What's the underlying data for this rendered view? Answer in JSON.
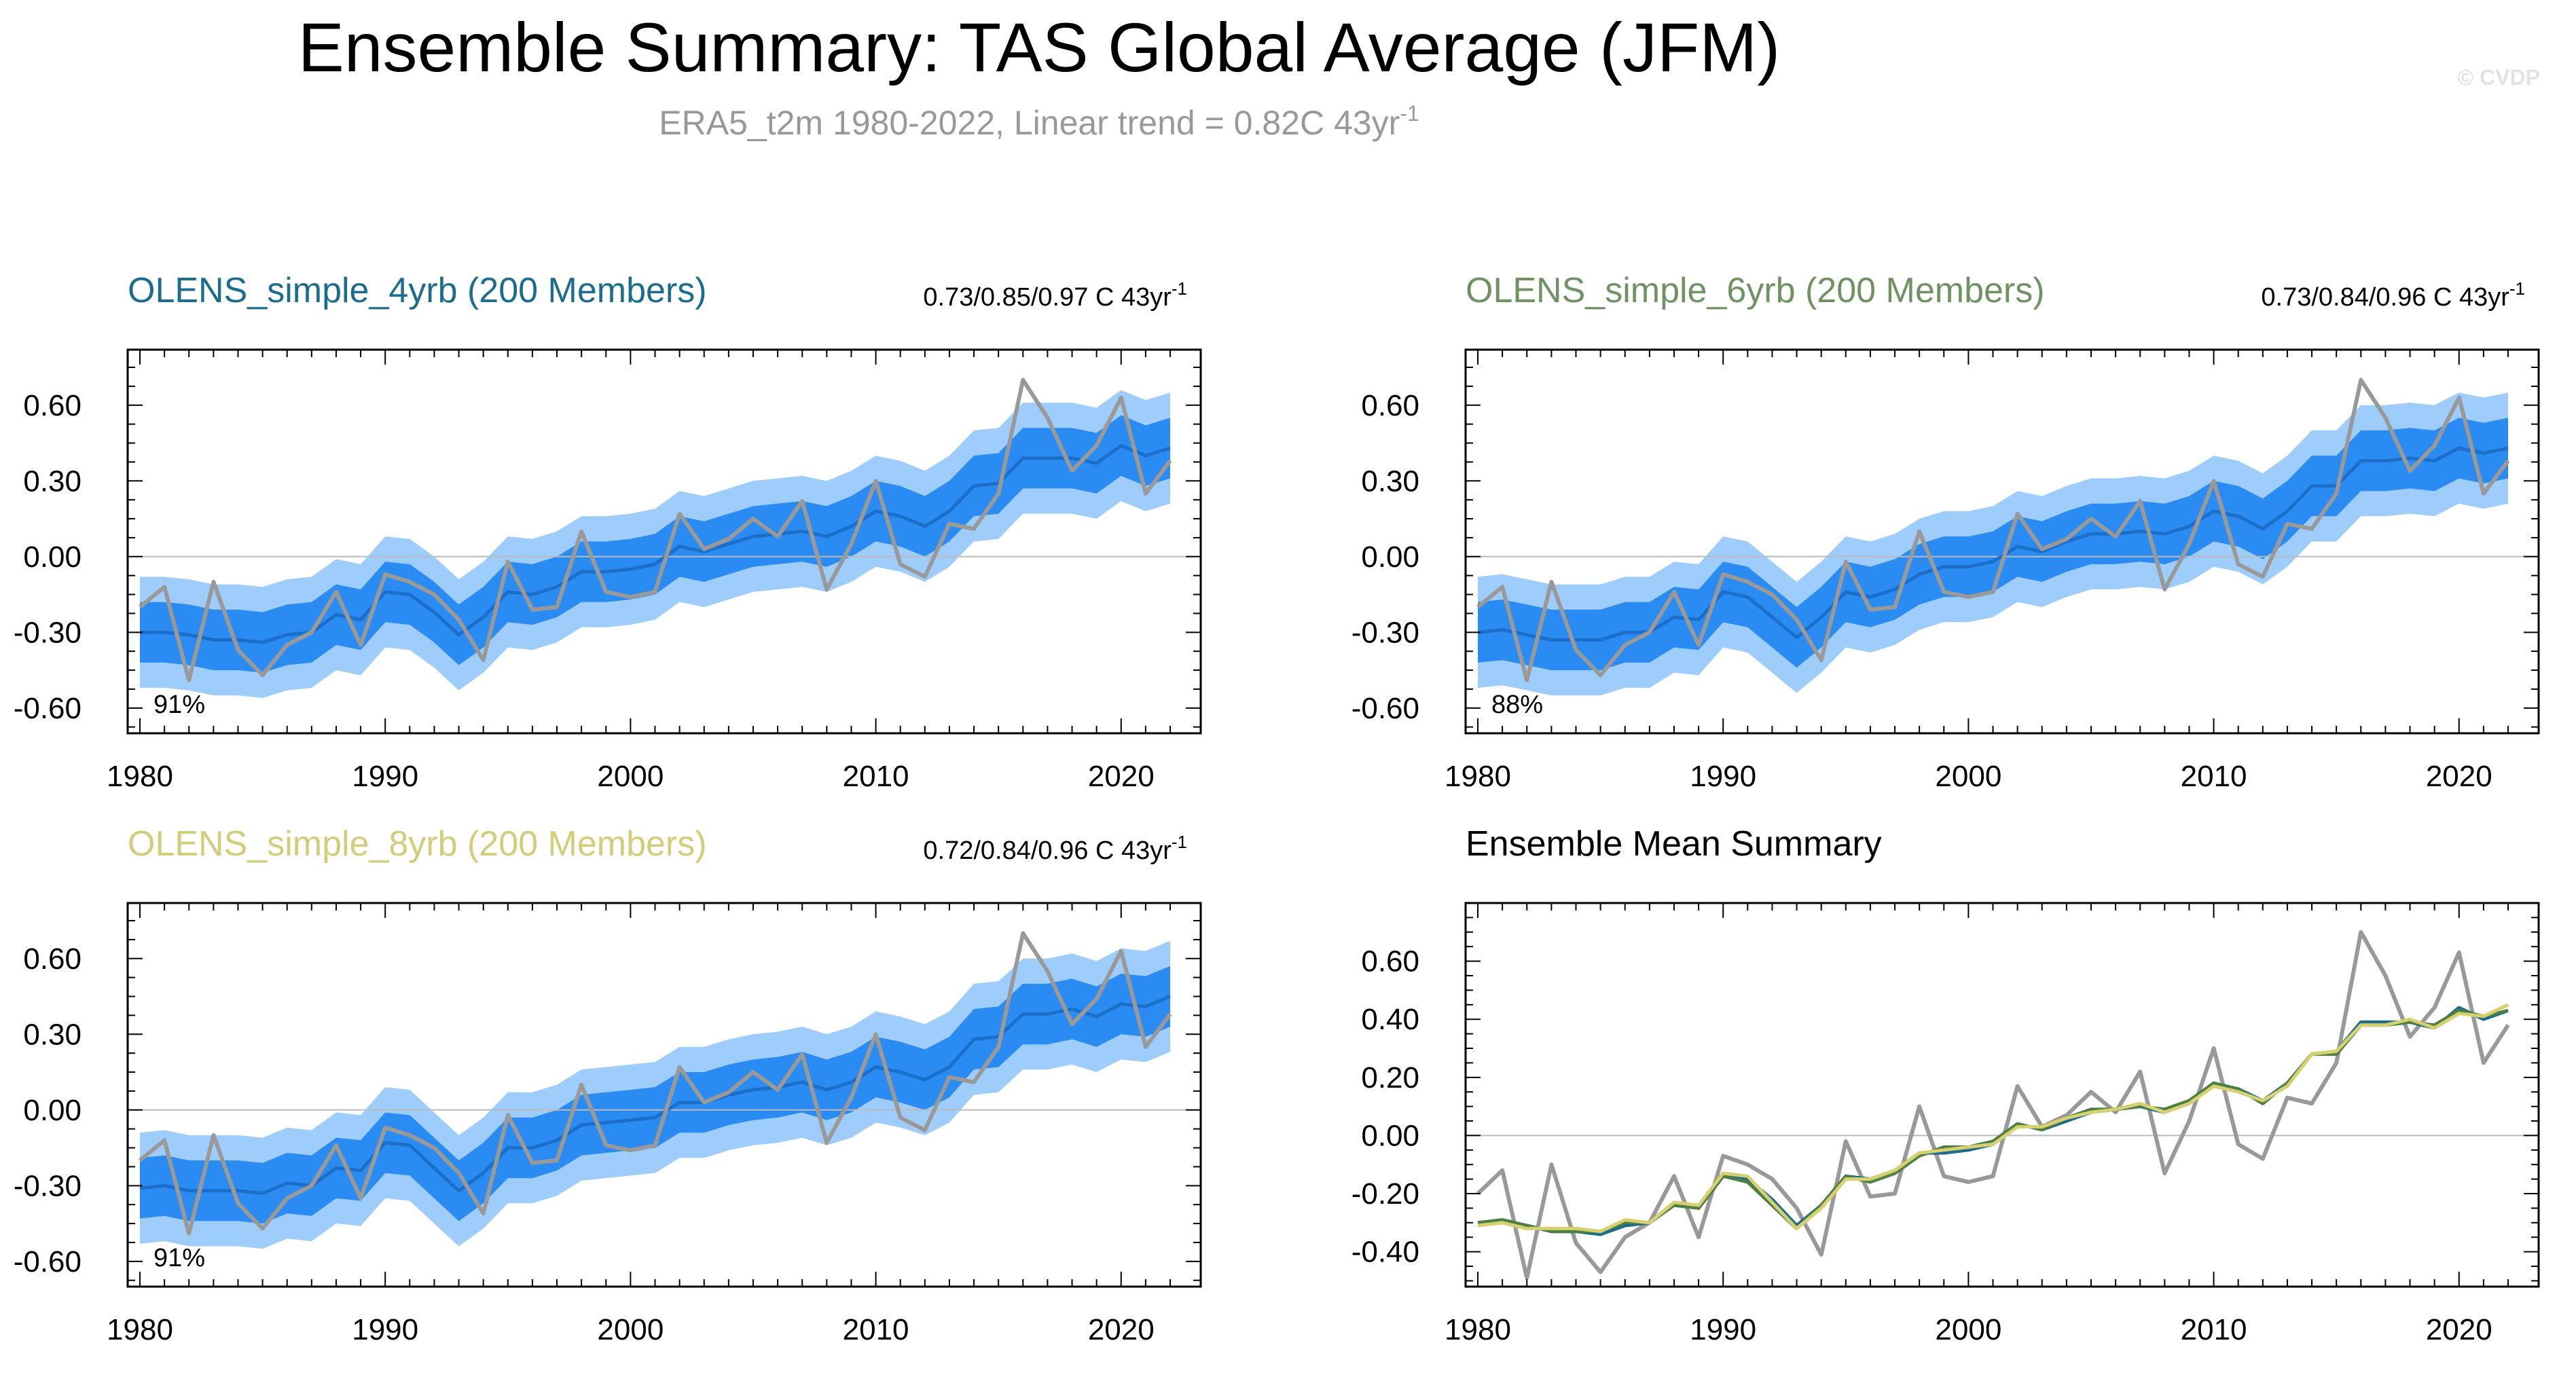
{
  "title": "Ensemble Summary: TAS Global Average (JFM)",
  "subtitle_main": "ERA5_t2m 1980-2022, Linear trend = 0.82C 43yr",
  "subtitle_sup": "-1",
  "copyright": "© CVDP",
  "colors": {
    "outer_band": "#9fcdfb",
    "inner_band": "#2a8bf2",
    "ens_mean": "#1c6fc9",
    "obs": "#999999",
    "zero_line": "#bbbbbb",
    "title_4yrb": "#1b6c8d",
    "title_6yrb": "#6f9263",
    "title_8yrb": "#d2cd78",
    "line_4yrb": "#1b6c8d",
    "line_6yrb": "#4d7f44",
    "line_8yrb": "#d6d070"
  },
  "chart_data": [
    {
      "type": "line",
      "id": "p1",
      "title": "OLENS_simple_4yrb (200 Members)",
      "trend_text": "0.73/0.85/0.97 C 43yr",
      "trend_sup": "-1",
      "percent_label": "91%",
      "xlim": [
        1980,
        2022
      ],
      "ylim": [
        -0.7,
        0.82
      ],
      "x_ticks": [
        1980,
        1990,
        2000,
        2010,
        2020
      ],
      "y_ticks": [
        0.6,
        0.3,
        0.0,
        -0.3,
        -0.6
      ],
      "y_tick_labels": [
        "0.60",
        "0.30",
        "0.00",
        "-0.30",
        "-0.60"
      ],
      "ens_mean": [
        -0.3,
        -0.3,
        -0.31,
        -0.33,
        -0.33,
        -0.34,
        -0.31,
        -0.3,
        -0.23,
        -0.25,
        -0.14,
        -0.15,
        -0.22,
        -0.31,
        -0.24,
        -0.14,
        -0.15,
        -0.12,
        -0.06,
        -0.06,
        -0.05,
        -0.03,
        0.04,
        0.02,
        0.05,
        0.08,
        0.09,
        0.1,
        0.08,
        0.12,
        0.18,
        0.16,
        0.12,
        0.18,
        0.28,
        0.29,
        0.39,
        0.39,
        0.39,
        0.37,
        0.44,
        0.4,
        0.43
      ],
      "inner_lo": [
        -0.42,
        -0.42,
        -0.43,
        -0.45,
        -0.45,
        -0.46,
        -0.43,
        -0.42,
        -0.35,
        -0.37,
        -0.26,
        -0.27,
        -0.34,
        -0.43,
        -0.36,
        -0.26,
        -0.27,
        -0.24,
        -0.18,
        -0.18,
        -0.17,
        -0.15,
        -0.08,
        -0.1,
        -0.07,
        -0.04,
        -0.03,
        -0.02,
        -0.04,
        0.0,
        0.06,
        0.04,
        0.0,
        0.06,
        0.16,
        0.17,
        0.27,
        0.27,
        0.27,
        0.25,
        0.32,
        0.28,
        0.31
      ],
      "inner_hi": [
        -0.18,
        -0.18,
        -0.19,
        -0.21,
        -0.21,
        -0.22,
        -0.19,
        -0.18,
        -0.11,
        -0.13,
        -0.02,
        -0.03,
        -0.1,
        -0.19,
        -0.12,
        -0.02,
        -0.03,
        0.0,
        0.06,
        0.06,
        0.07,
        0.09,
        0.16,
        0.14,
        0.17,
        0.2,
        0.21,
        0.22,
        0.2,
        0.24,
        0.3,
        0.28,
        0.24,
        0.3,
        0.4,
        0.41,
        0.51,
        0.51,
        0.51,
        0.49,
        0.56,
        0.52,
        0.55
      ],
      "outer_lo": [
        -0.52,
        -0.52,
        -0.53,
        -0.55,
        -0.55,
        -0.56,
        -0.53,
        -0.52,
        -0.45,
        -0.47,
        -0.36,
        -0.37,
        -0.44,
        -0.53,
        -0.46,
        -0.36,
        -0.37,
        -0.34,
        -0.28,
        -0.28,
        -0.27,
        -0.25,
        -0.18,
        -0.2,
        -0.17,
        -0.14,
        -0.13,
        -0.12,
        -0.14,
        -0.1,
        -0.04,
        -0.06,
        -0.1,
        -0.04,
        0.06,
        0.07,
        0.17,
        0.17,
        0.17,
        0.15,
        0.22,
        0.18,
        0.21
      ],
      "outer_hi": [
        -0.08,
        -0.08,
        -0.09,
        -0.11,
        -0.11,
        -0.12,
        -0.09,
        -0.08,
        -0.01,
        -0.03,
        0.08,
        0.07,
        0.0,
        -0.09,
        -0.02,
        0.08,
        0.07,
        0.1,
        0.16,
        0.16,
        0.17,
        0.19,
        0.26,
        0.24,
        0.27,
        0.3,
        0.31,
        0.32,
        0.3,
        0.34,
        0.4,
        0.38,
        0.34,
        0.4,
        0.5,
        0.51,
        0.61,
        0.61,
        0.61,
        0.59,
        0.66,
        0.62,
        0.65
      ],
      "obs": [
        -0.2,
        -0.12,
        -0.49,
        -0.1,
        -0.37,
        -0.47,
        -0.35,
        -0.3,
        -0.14,
        -0.35,
        -0.07,
        -0.1,
        -0.15,
        -0.25,
        -0.41,
        -0.02,
        -0.21,
        -0.2,
        0.1,
        -0.14,
        -0.16,
        -0.14,
        0.17,
        0.03,
        0.07,
        0.15,
        0.08,
        0.22,
        -0.13,
        0.05,
        0.3,
        -0.03,
        -0.08,
        0.13,
        0.11,
        0.25,
        0.7,
        0.55,
        0.34,
        0.44,
        0.63,
        0.25,
        0.38
      ]
    },
    {
      "type": "line",
      "id": "p2",
      "title": "OLENS_simple_6yrb (200 Members)",
      "trend_text": "0.73/0.84/0.96 C 43yr",
      "trend_sup": "-1",
      "percent_label": "88%",
      "xlim": [
        1980,
        2022
      ],
      "ylim": [
        -0.7,
        0.82
      ],
      "x_ticks": [
        1980,
        1990,
        2000,
        2010,
        2020
      ],
      "y_ticks": [
        0.6,
        0.3,
        0.0,
        -0.3,
        -0.6
      ],
      "y_tick_labels": [
        "0.60",
        "0.30",
        "0.00",
        "-0.30",
        "-0.60"
      ],
      "ens_mean": [
        -0.3,
        -0.29,
        -0.31,
        -0.33,
        -0.33,
        -0.33,
        -0.3,
        -0.3,
        -0.24,
        -0.25,
        -0.14,
        -0.16,
        -0.24,
        -0.32,
        -0.24,
        -0.14,
        -0.16,
        -0.13,
        -0.07,
        -0.04,
        -0.04,
        -0.02,
        0.04,
        0.02,
        0.06,
        0.09,
        0.09,
        0.1,
        0.09,
        0.12,
        0.18,
        0.16,
        0.11,
        0.18,
        0.28,
        0.28,
        0.38,
        0.38,
        0.39,
        0.38,
        0.43,
        0.41,
        0.43
      ],
      "inner_lo": [
        -0.42,
        -0.41,
        -0.43,
        -0.45,
        -0.45,
        -0.45,
        -0.42,
        -0.42,
        -0.36,
        -0.37,
        -0.26,
        -0.28,
        -0.36,
        -0.44,
        -0.36,
        -0.26,
        -0.28,
        -0.25,
        -0.19,
        -0.16,
        -0.16,
        -0.14,
        -0.08,
        -0.1,
        -0.06,
        -0.03,
        -0.03,
        -0.02,
        -0.03,
        0.0,
        0.06,
        0.04,
        -0.01,
        0.06,
        0.16,
        0.16,
        0.26,
        0.26,
        0.27,
        0.26,
        0.31,
        0.29,
        0.31
      ],
      "inner_hi": [
        -0.18,
        -0.17,
        -0.19,
        -0.21,
        -0.21,
        -0.21,
        -0.18,
        -0.18,
        -0.12,
        -0.13,
        -0.02,
        -0.04,
        -0.12,
        -0.2,
        -0.12,
        -0.02,
        -0.04,
        -0.01,
        0.05,
        0.08,
        0.08,
        0.1,
        0.16,
        0.14,
        0.18,
        0.21,
        0.21,
        0.22,
        0.21,
        0.24,
        0.3,
        0.28,
        0.23,
        0.3,
        0.4,
        0.4,
        0.5,
        0.5,
        0.51,
        0.5,
        0.55,
        0.53,
        0.55
      ],
      "outer_lo": [
        -0.52,
        -0.51,
        -0.53,
        -0.55,
        -0.55,
        -0.55,
        -0.52,
        -0.52,
        -0.46,
        -0.47,
        -0.36,
        -0.38,
        -0.46,
        -0.54,
        -0.46,
        -0.36,
        -0.38,
        -0.35,
        -0.29,
        -0.26,
        -0.26,
        -0.24,
        -0.18,
        -0.2,
        -0.16,
        -0.13,
        -0.13,
        -0.12,
        -0.13,
        -0.1,
        -0.04,
        -0.06,
        -0.11,
        -0.04,
        0.06,
        0.06,
        0.16,
        0.16,
        0.17,
        0.16,
        0.21,
        0.19,
        0.21
      ],
      "outer_hi": [
        -0.08,
        -0.07,
        -0.09,
        -0.11,
        -0.11,
        -0.11,
        -0.08,
        -0.08,
        -0.02,
        -0.03,
        0.08,
        0.06,
        -0.02,
        -0.1,
        -0.02,
        0.08,
        0.06,
        0.09,
        0.15,
        0.18,
        0.18,
        0.2,
        0.26,
        0.24,
        0.28,
        0.31,
        0.31,
        0.32,
        0.31,
        0.34,
        0.4,
        0.38,
        0.33,
        0.4,
        0.5,
        0.5,
        0.6,
        0.6,
        0.61,
        0.6,
        0.65,
        0.63,
        0.65
      ],
      "obs": [
        -0.2,
        -0.12,
        -0.49,
        -0.1,
        -0.37,
        -0.47,
        -0.35,
        -0.3,
        -0.14,
        -0.35,
        -0.07,
        -0.1,
        -0.15,
        -0.25,
        -0.41,
        -0.02,
        -0.21,
        -0.2,
        0.1,
        -0.14,
        -0.16,
        -0.14,
        0.17,
        0.03,
        0.07,
        0.15,
        0.08,
        0.22,
        -0.13,
        0.05,
        0.3,
        -0.03,
        -0.08,
        0.13,
        0.11,
        0.25,
        0.7,
        0.55,
        0.34,
        0.44,
        0.63,
        0.25,
        0.38
      ]
    },
    {
      "type": "line",
      "id": "p3",
      "title": "OLENS_simple_8yrb (200 Members)",
      "trend_text": "0.72/0.84/0.96 C 43yr",
      "trend_sup": "-1",
      "percent_label": "91%",
      "xlim": [
        1980,
        2022
      ],
      "ylim": [
        -0.7,
        0.82
      ],
      "x_ticks": [
        1980,
        1990,
        2000,
        2010,
        2020
      ],
      "y_ticks": [
        0.6,
        0.3,
        0.0,
        -0.3,
        -0.6
      ],
      "y_tick_labels": [
        "0.60",
        "0.30",
        "0.00",
        "-0.30",
        "-0.60"
      ],
      "ens_mean": [
        -0.31,
        -0.3,
        -0.32,
        -0.32,
        -0.32,
        -0.33,
        -0.29,
        -0.3,
        -0.23,
        -0.24,
        -0.13,
        -0.14,
        -0.23,
        -0.32,
        -0.25,
        -0.15,
        -0.15,
        -0.12,
        -0.06,
        -0.05,
        -0.04,
        -0.03,
        0.03,
        0.03,
        0.06,
        0.08,
        0.09,
        0.11,
        0.08,
        0.11,
        0.17,
        0.15,
        0.12,
        0.17,
        0.28,
        0.29,
        0.38,
        0.38,
        0.4,
        0.37,
        0.42,
        0.41,
        0.45
      ],
      "inner_lo": [
        -0.43,
        -0.42,
        -0.44,
        -0.44,
        -0.44,
        -0.45,
        -0.41,
        -0.42,
        -0.35,
        -0.36,
        -0.25,
        -0.26,
        -0.35,
        -0.44,
        -0.37,
        -0.27,
        -0.27,
        -0.24,
        -0.18,
        -0.17,
        -0.16,
        -0.15,
        -0.09,
        -0.09,
        -0.06,
        -0.04,
        -0.03,
        -0.01,
        -0.04,
        -0.01,
        0.05,
        0.03,
        0.0,
        0.05,
        0.16,
        0.17,
        0.26,
        0.26,
        0.28,
        0.25,
        0.3,
        0.29,
        0.33
      ],
      "inner_hi": [
        -0.19,
        -0.18,
        -0.2,
        -0.2,
        -0.2,
        -0.21,
        -0.17,
        -0.18,
        -0.11,
        -0.12,
        -0.01,
        -0.02,
        -0.11,
        -0.2,
        -0.13,
        -0.03,
        -0.03,
        0.0,
        0.06,
        0.07,
        0.08,
        0.09,
        0.15,
        0.15,
        0.18,
        0.2,
        0.21,
        0.23,
        0.2,
        0.23,
        0.29,
        0.27,
        0.24,
        0.29,
        0.4,
        0.41,
        0.5,
        0.5,
        0.52,
        0.49,
        0.54,
        0.53,
        0.57
      ],
      "outer_lo": [
        -0.53,
        -0.52,
        -0.54,
        -0.54,
        -0.54,
        -0.55,
        -0.51,
        -0.52,
        -0.45,
        -0.46,
        -0.35,
        -0.36,
        -0.45,
        -0.54,
        -0.47,
        -0.37,
        -0.37,
        -0.34,
        -0.28,
        -0.27,
        -0.26,
        -0.25,
        -0.19,
        -0.19,
        -0.16,
        -0.14,
        -0.13,
        -0.11,
        -0.14,
        -0.11,
        -0.05,
        -0.07,
        -0.1,
        -0.05,
        0.06,
        0.07,
        0.16,
        0.16,
        0.18,
        0.15,
        0.2,
        0.19,
        0.23
      ],
      "outer_hi": [
        -0.09,
        -0.08,
        -0.1,
        -0.1,
        -0.1,
        -0.11,
        -0.07,
        -0.08,
        -0.01,
        -0.02,
        0.09,
        0.08,
        -0.01,
        -0.1,
        -0.03,
        0.07,
        0.07,
        0.1,
        0.16,
        0.17,
        0.18,
        0.19,
        0.25,
        0.25,
        0.28,
        0.3,
        0.31,
        0.33,
        0.3,
        0.33,
        0.39,
        0.37,
        0.34,
        0.39,
        0.5,
        0.51,
        0.6,
        0.6,
        0.62,
        0.59,
        0.64,
        0.63,
        0.67
      ],
      "obs": [
        -0.2,
        -0.12,
        -0.49,
        -0.1,
        -0.37,
        -0.47,
        -0.35,
        -0.3,
        -0.14,
        -0.35,
        -0.07,
        -0.1,
        -0.15,
        -0.25,
        -0.41,
        -0.02,
        -0.21,
        -0.2,
        0.1,
        -0.14,
        -0.16,
        -0.14,
        0.17,
        0.03,
        0.07,
        0.15,
        0.08,
        0.22,
        -0.13,
        0.05,
        0.3,
        -0.03,
        -0.08,
        0.13,
        0.11,
        0.25,
        0.7,
        0.55,
        0.34,
        0.44,
        0.63,
        0.25,
        0.38
      ]
    },
    {
      "type": "line",
      "id": "p4",
      "title": "Ensemble Mean Summary",
      "xlim": [
        1980,
        2022
      ],
      "ylim": [
        -0.52,
        0.8
      ],
      "x_ticks": [
        1980,
        1990,
        2000,
        2010,
        2020
      ],
      "y_ticks": [
        0.6,
        0.4,
        0.2,
        0.0,
        -0.2,
        -0.4
      ],
      "y_tick_labels": [
        "0.60",
        "0.40",
        "0.20",
        "0.00",
        "-0.20",
        "-0.40"
      ],
      "series": [
        {
          "values": [
            -0.3,
            -0.3,
            -0.31,
            -0.33,
            -0.33,
            -0.34,
            -0.31,
            -0.3,
            -0.23,
            -0.25,
            -0.14,
            -0.15,
            -0.22,
            -0.31,
            -0.24,
            -0.14,
            -0.15,
            -0.12,
            -0.06,
            -0.06,
            -0.05,
            -0.03,
            0.04,
            0.02,
            0.05,
            0.08,
            0.09,
            0.1,
            0.08,
            0.12,
            0.18,
            0.16,
            0.12,
            0.18,
            0.28,
            0.29,
            0.39,
            0.39,
            0.39,
            0.37,
            0.44,
            0.4,
            0.43
          ]
        },
        {
          "values": [
            -0.3,
            -0.29,
            -0.31,
            -0.33,
            -0.33,
            -0.33,
            -0.3,
            -0.3,
            -0.24,
            -0.25,
            -0.14,
            -0.16,
            -0.24,
            -0.32,
            -0.24,
            -0.14,
            -0.16,
            -0.13,
            -0.07,
            -0.04,
            -0.04,
            -0.02,
            0.04,
            0.02,
            0.06,
            0.09,
            0.09,
            0.1,
            0.09,
            0.12,
            0.18,
            0.16,
            0.11,
            0.18,
            0.28,
            0.28,
            0.38,
            0.38,
            0.39,
            0.38,
            0.43,
            0.41,
            0.43
          ]
        },
        {
          "values": [
            -0.31,
            -0.3,
            -0.32,
            -0.32,
            -0.32,
            -0.33,
            -0.29,
            -0.3,
            -0.23,
            -0.24,
            -0.13,
            -0.14,
            -0.23,
            -0.32,
            -0.25,
            -0.15,
            -0.15,
            -0.12,
            -0.06,
            -0.05,
            -0.04,
            -0.03,
            0.03,
            0.03,
            0.06,
            0.08,
            0.09,
            0.11,
            0.08,
            0.11,
            0.17,
            0.15,
            0.12,
            0.17,
            0.28,
            0.29,
            0.38,
            0.38,
            0.4,
            0.37,
            0.42,
            0.41,
            0.45
          ]
        },
        {
          "values": [
            -0.2,
            -0.12,
            -0.49,
            -0.1,
            -0.37,
            -0.47,
            -0.35,
            -0.3,
            -0.14,
            -0.35,
            -0.07,
            -0.1,
            -0.15,
            -0.25,
            -0.41,
            -0.02,
            -0.21,
            -0.2,
            0.1,
            -0.14,
            -0.16,
            -0.14,
            0.17,
            0.03,
            0.07,
            0.15,
            0.08,
            0.22,
            -0.13,
            0.05,
            0.3,
            -0.03,
            -0.08,
            0.13,
            0.11,
            0.25,
            0.7,
            0.55,
            0.34,
            0.44,
            0.63,
            0.25,
            0.38
          ]
        }
      ]
    }
  ]
}
